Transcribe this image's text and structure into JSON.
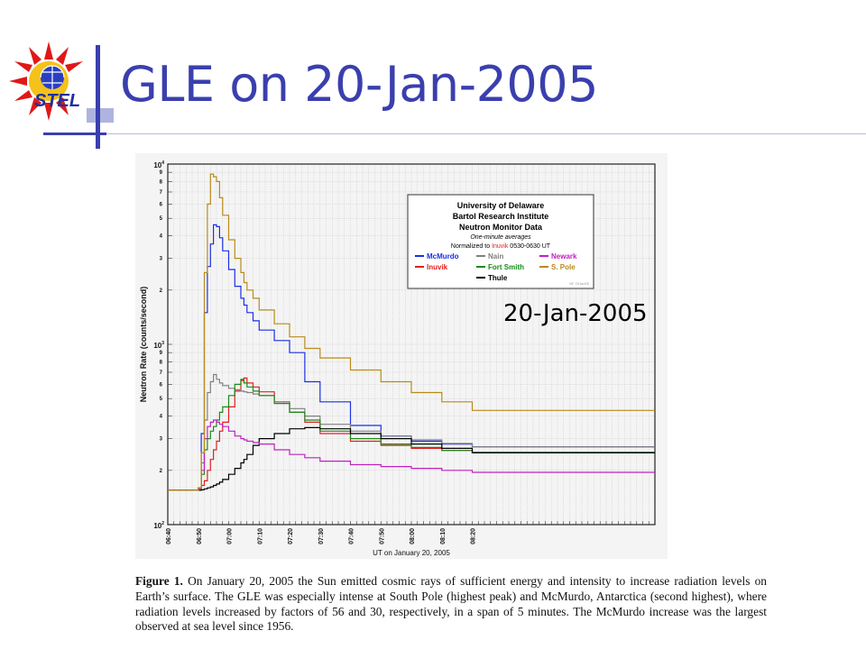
{
  "slide": {
    "title": "GLE on 20-Jan-2005",
    "logo_text": "STEL",
    "overlay_label": "20-Jan-2005",
    "caption_lead": "Figure 1.",
    "caption_text": "On January 20, 2005 the Sun emitted cosmic rays of sufficient energy and intensity to increase radiation levels on Earth’s surface. The GLE was especially intense at South Pole (highest peak) and McMurdo, Antarctica (second highest), where radiation levels increased by factors of 56 and 30, respectively, in a span of 5 minutes. The McMurdo increase was the largest observed at sea level since 1956."
  },
  "colors": {
    "title": "#3a3fae",
    "accent": "#3a3fb0"
  },
  "chart_data": {
    "type": "line",
    "xlabel": "UT on January 20, 2005",
    "ylabel": "Neutron Rate (counts/second)",
    "yscale": "log",
    "ylim": [
      100,
      10000
    ],
    "xlim": [
      "06:40",
      "09:20"
    ],
    "xticks": [
      "06:40",
      "06:50",
      "07:00",
      "07:10",
      "07:20",
      "07:30",
      "07:40",
      "07:50",
      "08:00",
      "08:10",
      "08:20"
    ],
    "yticks_major": [
      "10^2",
      "10^3",
      "10^4"
    ],
    "ytick_minor_labels": [
      "2",
      "3",
      "4",
      "5",
      "6",
      "7",
      "8",
      "9"
    ],
    "grid": true,
    "legend_box": {
      "lines": [
        "University of Delaware",
        "Bartol Research Institute",
        "Neutron Monitor Data",
        "One-minute averages"
      ],
      "norm_prefix": "Normalized to ",
      "norm_highlight": "Inuvik",
      "norm_suffix": " 0530-0630 UT",
      "credit": "NF 20Jan05"
    },
    "x": [
      "06:40",
      "06:45",
      "06:48",
      "06:50",
      "06:51",
      "06:52",
      "06:53",
      "06:54",
      "06:55",
      "06:56",
      "06:57",
      "06:58",
      "07:00",
      "07:02",
      "07:04",
      "07:05",
      "07:06",
      "07:08",
      "07:10",
      "07:15",
      "07:20",
      "07:25",
      "07:30",
      "07:40",
      "07:50",
      "08:00",
      "08:10",
      "08:20"
    ],
    "series": [
      {
        "name": "McMurdo",
        "color": "#1a2fe6",
        "values": [
          155,
          155,
          155,
          160,
          320,
          1500,
          2700,
          3600,
          4600,
          4500,
          3900,
          3300,
          2600,
          2100,
          1800,
          1650,
          1500,
          1350,
          1200,
          1050,
          900,
          620,
          480,
          355,
          310,
          290,
          280,
          270
        ]
      },
      {
        "name": "Inuvik",
        "color": "#e02020",
        "values": [
          155,
          155,
          155,
          158,
          165,
          175,
          200,
          230,
          260,
          290,
          330,
          370,
          450,
          550,
          630,
          650,
          610,
          580,
          545,
          480,
          420,
          370,
          320,
          290,
          275,
          265,
          258,
          250
        ]
      },
      {
        "name": "Nain",
        "color": "#808080",
        "values": [
          155,
          155,
          155,
          158,
          220,
          380,
          540,
          620,
          680,
          640,
          610,
          590,
          570,
          560,
          550,
          545,
          540,
          530,
          520,
          480,
          440,
          400,
          360,
          330,
          310,
          295,
          282,
          270
        ]
      },
      {
        "name": "Fort Smith",
        "color": "#1a8a1a",
        "values": [
          155,
          155,
          155,
          158,
          190,
          260,
          300,
          330,
          350,
          380,
          420,
          450,
          520,
          600,
          640,
          610,
          580,
          550,
          520,
          470,
          420,
          380,
          330,
          300,
          280,
          268,
          258,
          252
        ]
      },
      {
        "name": "Thule",
        "color": "#000000",
        "values": [
          155,
          155,
          155,
          155,
          156,
          158,
          160,
          162,
          165,
          168,
          172,
          178,
          190,
          205,
          220,
          230,
          245,
          275,
          300,
          320,
          340,
          345,
          340,
          320,
          300,
          280,
          265,
          250
        ]
      },
      {
        "name": "Newark",
        "color": "#c020c0",
        "values": [
          155,
          155,
          155,
          158,
          200,
          300,
          350,
          370,
          380,
          370,
          360,
          350,
          330,
          310,
          300,
          295,
          290,
          285,
          280,
          260,
          245,
          235,
          225,
          215,
          210,
          205,
          200,
          195
        ]
      },
      {
        "name": "S. Pole",
        "color": "#b88a1a",
        "values": [
          155,
          155,
          155,
          160,
          250,
          2500,
          6000,
          8800,
          8500,
          8000,
          6500,
          5200,
          3800,
          3000,
          2500,
          2200,
          2000,
          1800,
          1550,
          1300,
          1100,
          950,
          840,
          720,
          620,
          540,
          480,
          430
        ]
      }
    ]
  }
}
